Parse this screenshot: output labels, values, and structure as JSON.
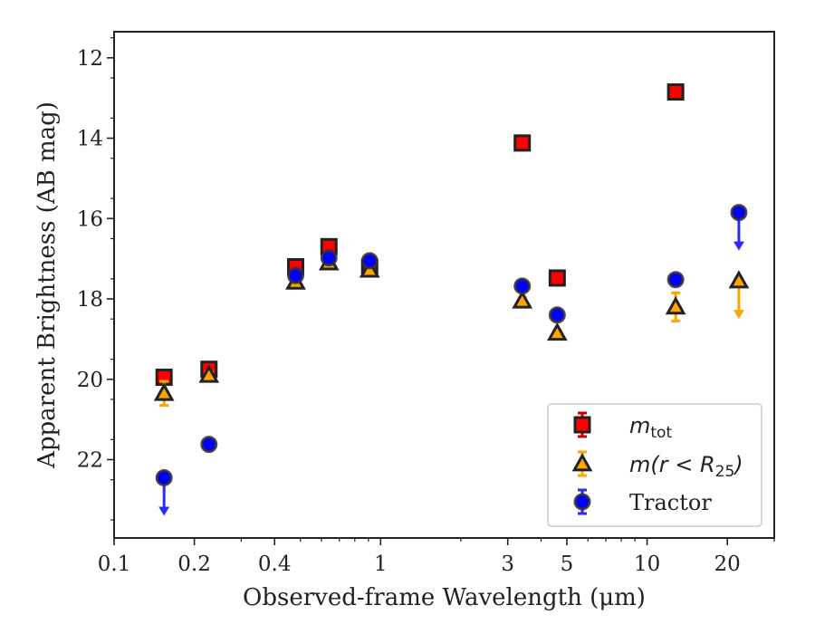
{
  "chart_data": {
    "type": "scatter",
    "xlabel": "Observed-frame Wavelength (μm)",
    "ylabel": "Apparent Brightness (AB mag)",
    "xscale": "log",
    "xlim": [
      0.1,
      30
    ],
    "ylim": [
      23.95,
      11.35
    ],
    "y_inverted": true,
    "x_ticks": [
      0.1,
      0.2,
      0.4,
      1,
      3,
      5,
      10,
      20
    ],
    "x_tick_labels": [
      "0.1",
      "0.2",
      "0.4",
      "1",
      "3",
      "5",
      "10",
      "20"
    ],
    "y_ticks": [
      12,
      14,
      16,
      18,
      20,
      22
    ],
    "y_tick_labels": [
      "12",
      "14",
      "16",
      "18",
      "20",
      "22"
    ],
    "legend_position": "lower-right",
    "series": [
      {
        "name": "m_tot",
        "legend_main": "m",
        "legend_sub": "tot",
        "marker": "square",
        "face_color": "#ff0000",
        "edge_color": "#222222",
        "error_color": "#cc0000",
        "points": [
          {
            "x": 0.154,
            "y": 19.95,
            "err": 0.05
          },
          {
            "x": 0.227,
            "y": 19.75,
            "err": 0.05
          },
          {
            "x": 0.48,
            "y": 17.2,
            "err": 0.05
          },
          {
            "x": 0.64,
            "y": 16.7,
            "err": 0.05
          },
          {
            "x": 0.91,
            "y": 17.22,
            "err": 0.05
          },
          {
            "x": 3.4,
            "y": 14.12,
            "err": 0.05
          },
          {
            "x": 4.6,
            "y": 17.48,
            "err": 0.05
          },
          {
            "x": 12.8,
            "y": 12.85,
            "err": 0.05
          }
        ]
      },
      {
        "name": "m(r < R25)",
        "legend_main": "m(r < R",
        "legend_sub": "25",
        "legend_tail": ")",
        "marker": "triangle",
        "face_color": "#ffa500",
        "edge_color": "#222222",
        "error_color": "#ffa500",
        "points": [
          {
            "x": 0.154,
            "y": 20.35,
            "err": 0.3
          },
          {
            "x": 0.227,
            "y": 19.9,
            "err": 0.05
          },
          {
            "x": 0.48,
            "y": 17.58,
            "err": 0.05
          },
          {
            "x": 0.64,
            "y": 17.1,
            "err": 0.05
          },
          {
            "x": 0.91,
            "y": 17.28,
            "err": 0.05
          },
          {
            "x": 3.4,
            "y": 18.05,
            "err": 0.05
          },
          {
            "x": 4.6,
            "y": 18.85,
            "err": 0.05
          },
          {
            "x": 12.8,
            "y": 18.2,
            "err": 0.35
          },
          {
            "x": 22.1,
            "y": 17.55,
            "upper_limit": true
          }
        ]
      },
      {
        "name": "Tractor",
        "marker": "circle",
        "face_color": "#0000ff",
        "edge_color": "#333333",
        "error_color": "#2a2aff",
        "points": [
          {
            "x": 0.154,
            "y": 22.45,
            "upper_limit": true
          },
          {
            "x": 0.227,
            "y": 21.62,
            "err": 0.05
          },
          {
            "x": 0.48,
            "y": 17.42,
            "err": 0.05
          },
          {
            "x": 0.64,
            "y": 16.98,
            "err": 0.05
          },
          {
            "x": 0.91,
            "y": 17.05,
            "err": 0.05
          },
          {
            "x": 3.4,
            "y": 17.68,
            "err": 0.05
          },
          {
            "x": 4.6,
            "y": 18.4,
            "err": 0.05
          },
          {
            "x": 12.8,
            "y": 17.52,
            "err": 0.05
          },
          {
            "x": 22.1,
            "y": 15.85,
            "upper_limit": true
          }
        ]
      }
    ]
  }
}
